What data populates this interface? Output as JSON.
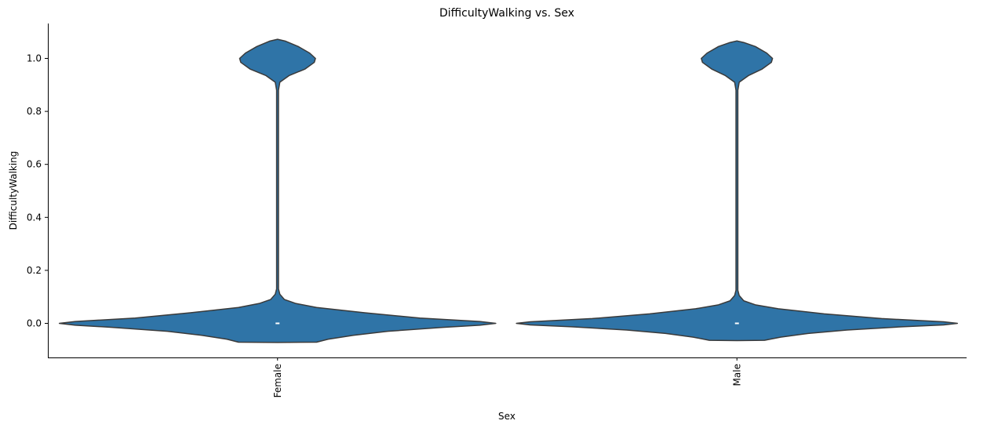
{
  "chart_data": {
    "type": "violin",
    "title": "DifficultyWalking vs. Sex",
    "xlabel": "Sex",
    "ylabel": "DifficultyWalking",
    "categories": [
      "Female",
      "Male"
    ],
    "ylim": [
      -0.13,
      1.13
    ],
    "yticks": [
      0.0,
      0.2,
      0.4,
      0.6,
      0.8,
      1.0
    ],
    "ytick_labels": [
      "0.0",
      "0.2",
      "0.4",
      "0.6",
      "0.8",
      "1.0"
    ],
    "grid": false,
    "fill_color": "#2f74a7",
    "edge_color": "#3a3a3a",
    "median_color": "#ffffff",
    "medians": [
      0.0,
      0.0
    ],
    "violins": [
      {
        "category": "Female",
        "profile": [
          {
            "y": -0.072,
            "w": 0.0
          },
          {
            "y": -0.071,
            "w": 0.17
          },
          {
            "y": -0.06,
            "w": 0.22
          },
          {
            "y": -0.045,
            "w": 0.33
          },
          {
            "y": -0.03,
            "w": 0.48
          },
          {
            "y": -0.015,
            "w": 0.72
          },
          {
            "y": -0.007,
            "w": 0.88
          },
          {
            "y": 0.0,
            "w": 0.95
          },
          {
            "y": 0.007,
            "w": 0.88
          },
          {
            "y": 0.02,
            "w": 0.62
          },
          {
            "y": 0.04,
            "w": 0.38
          },
          {
            "y": 0.06,
            "w": 0.17
          },
          {
            "y": 0.075,
            "w": 0.08
          },
          {
            "y": 0.09,
            "w": 0.03
          },
          {
            "y": 0.11,
            "w": 0.01
          },
          {
            "y": 0.13,
            "w": 0.004
          },
          {
            "y": 0.88,
            "w": 0.004
          },
          {
            "y": 0.91,
            "w": 0.01
          },
          {
            "y": 0.935,
            "w": 0.05
          },
          {
            "y": 0.96,
            "w": 0.12
          },
          {
            "y": 0.985,
            "w": 0.16
          },
          {
            "y": 1.0,
            "w": 0.165
          },
          {
            "y": 1.02,
            "w": 0.14
          },
          {
            "y": 1.045,
            "w": 0.09
          },
          {
            "y": 1.065,
            "w": 0.035
          },
          {
            "y": 1.072,
            "w": 0.0
          }
        ]
      },
      {
        "category": "Male",
        "profile": [
          {
            "y": -0.065,
            "w": 0.0
          },
          {
            "y": -0.064,
            "w": 0.12
          },
          {
            "y": -0.052,
            "w": 0.19
          },
          {
            "y": -0.038,
            "w": 0.31
          },
          {
            "y": -0.025,
            "w": 0.48
          },
          {
            "y": -0.013,
            "w": 0.72
          },
          {
            "y": -0.006,
            "w": 0.9
          },
          {
            "y": 0.0,
            "w": 0.96
          },
          {
            "y": 0.006,
            "w": 0.9
          },
          {
            "y": 0.018,
            "w": 0.63
          },
          {
            "y": 0.036,
            "w": 0.38
          },
          {
            "y": 0.055,
            "w": 0.18
          },
          {
            "y": 0.07,
            "w": 0.08
          },
          {
            "y": 0.085,
            "w": 0.03
          },
          {
            "y": 0.105,
            "w": 0.01
          },
          {
            "y": 0.125,
            "w": 0.004
          },
          {
            "y": 0.88,
            "w": 0.004
          },
          {
            "y": 0.91,
            "w": 0.01
          },
          {
            "y": 0.935,
            "w": 0.05
          },
          {
            "y": 0.96,
            "w": 0.11
          },
          {
            "y": 0.985,
            "w": 0.15
          },
          {
            "y": 1.0,
            "w": 0.155
          },
          {
            "y": 1.02,
            "w": 0.13
          },
          {
            "y": 1.045,
            "w": 0.08
          },
          {
            "y": 1.06,
            "w": 0.03
          },
          {
            "y": 1.066,
            "w": 0.0
          }
        ]
      }
    ]
  }
}
